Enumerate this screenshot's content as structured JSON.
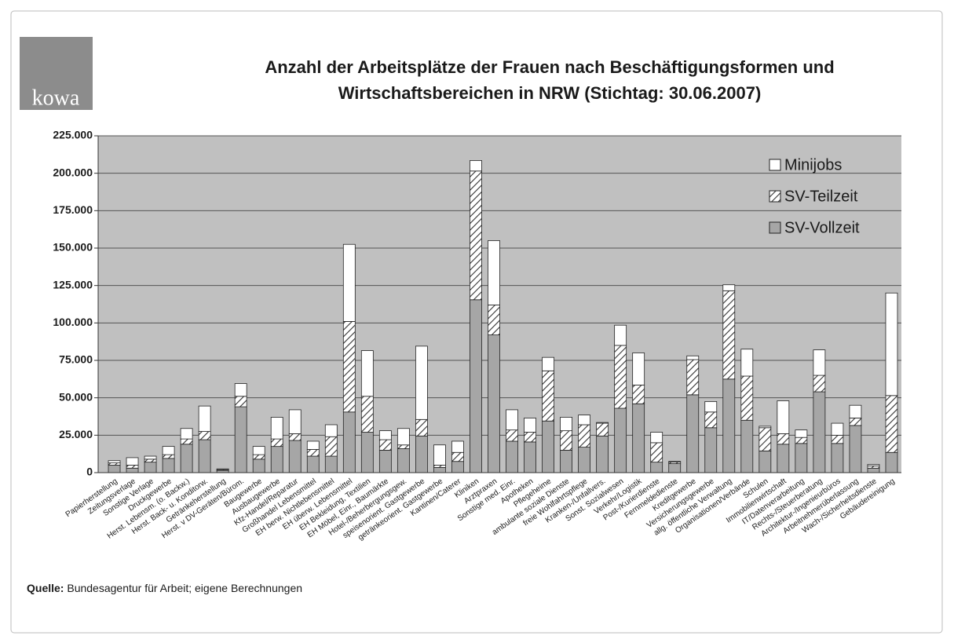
{
  "logo": "kowa",
  "chart_data": {
    "type": "stacked_bar",
    "title": [
      "Anzahl der Arbeitsplätze der Frauen nach Beschäftigungsformen und",
      "Wirtschaftsbereichen in NRW (Stichtag: 30.06.2007)"
    ],
    "categories": [
      "Papierherstellung",
      "Zeitungsverlage",
      "Sonstige Verlage",
      "Druckgewerbe",
      "Herst. Lebensm. (o. Backw.)",
      "Herst. Back- u. Konditorw.",
      "Getränkeherstellung",
      "Herst. v DV-Geräten/Bürom.",
      "Baugewerbe",
      "Ausbaugewerbe",
      "Kfz-Handel/Reparatur",
      "Großhandel Lebensmittel",
      "EH berw. Nichtlebensmittel",
      "EH überw. Lebensmittel",
      "EH Bekleidung, Textilien",
      "EH Möbel, Einr., Baumärkte",
      "Hotel-/Beherbergungsgew.",
      "speisenorient. Gastgewerbe",
      "getränkeorient. Gastgewerbe",
      "Kantinen/Caterer",
      "Kliniken",
      "Arztpraxen",
      "Sonstige med. Einr.",
      "Apotheken",
      "Pflegeheime",
      "ambulante soziale Dienste",
      "freie Wohlfahrtspflege",
      "Kranken-/Unfallvers.",
      "Sonst. Sozialwesen",
      "Verkehr/Logistik",
      "Post-/Kurierdienste",
      "Fernmeldedienste",
      "Kreditgewerbe",
      "Versicherungsgewerbe",
      "allg. öffentliche Verwaltung",
      "Organisationen/Verbände",
      "Schulen",
      "Immobilienwirtschaft",
      "IT/Datenverarbeitung",
      "Rechts-/Steuerberatung",
      "Architektur-/Ingenieurbüros",
      "Arbeitnehmerüberlassung",
      "Wach-/Sicherheitsdienste",
      "Gebäudereinigung"
    ],
    "series": [
      {
        "name": "SV-Vollzeit",
        "color": "#a6a6a6",
        "values": [
          5000,
          3000,
          7000,
          9500,
          19000,
          22000,
          1500,
          44000,
          9000,
          17500,
          21500,
          11000,
          11000,
          40500,
          27000,
          15000,
          16000,
          24500,
          3500,
          7500,
          115500,
          92000,
          21000,
          20500,
          34500,
          15000,
          17000,
          24500,
          43000,
          46000,
          7000,
          6000,
          52000,
          30000,
          62500,
          35000,
          14500,
          19000,
          19500,
          54000,
          19500,
          31500,
          3000,
          13500
        ]
      },
      {
        "name": "SV-Teilzeit",
        "color": "#ffffff",
        "hatch": true,
        "values": [
          1500,
          2000,
          2000,
          2500,
          3500,
          5500,
          500,
          7000,
          3000,
          5000,
          4500,
          4500,
          13000,
          60500,
          24000,
          7000,
          2500,
          11000,
          1500,
          6000,
          86000,
          20000,
          7500,
          6500,
          33500,
          13000,
          15000,
          8500,
          42000,
          12500,
          13000,
          1000,
          23500,
          10500,
          59000,
          29500,
          15500,
          7000,
          4000,
          11000,
          5500,
          5000,
          1500,
          38000
        ]
      },
      {
        "name": "Minijobs",
        "color": "#ffffff",
        "values": [
          1500,
          5000,
          2000,
          5500,
          7000,
          17000,
          500,
          8500,
          5500,
          14500,
          16000,
          5500,
          8000,
          51500,
          30500,
          6000,
          11000,
          49000,
          13500,
          7500,
          7000,
          43000,
          13500,
          9500,
          9000,
          9000,
          6500,
          500,
          13500,
          21500,
          7000,
          500,
          2500,
          7000,
          4000,
          18000,
          1000,
          22000,
          5000,
          17000,
          8000,
          8500,
          1000,
          68500
        ]
      }
    ],
    "ylim": [
      0,
      225000
    ],
    "yticks": [
      0,
      {
        "value": 25000,
        "label": "25.000"
      },
      {
        "value": 50000,
        "label": "50.000"
      },
      {
        "value": 75000,
        "label": "75.000"
      },
      {
        "value": 100000,
        "label": "100.000"
      },
      {
        "value": 125000,
        "label": "125.000"
      },
      {
        "value": 150000,
        "label": "150.000"
      },
      {
        "value": 175000,
        "label": "175.000"
      },
      {
        "value": 200000,
        "label": "200.000"
      },
      {
        "value": 225000,
        "label": "225.000"
      }
    ],
    "grid": true,
    "legend": "top-right"
  },
  "source": {
    "label": "Quelle:",
    "text": "Bundesagentur für Arbeit; eigene Berechnungen"
  }
}
